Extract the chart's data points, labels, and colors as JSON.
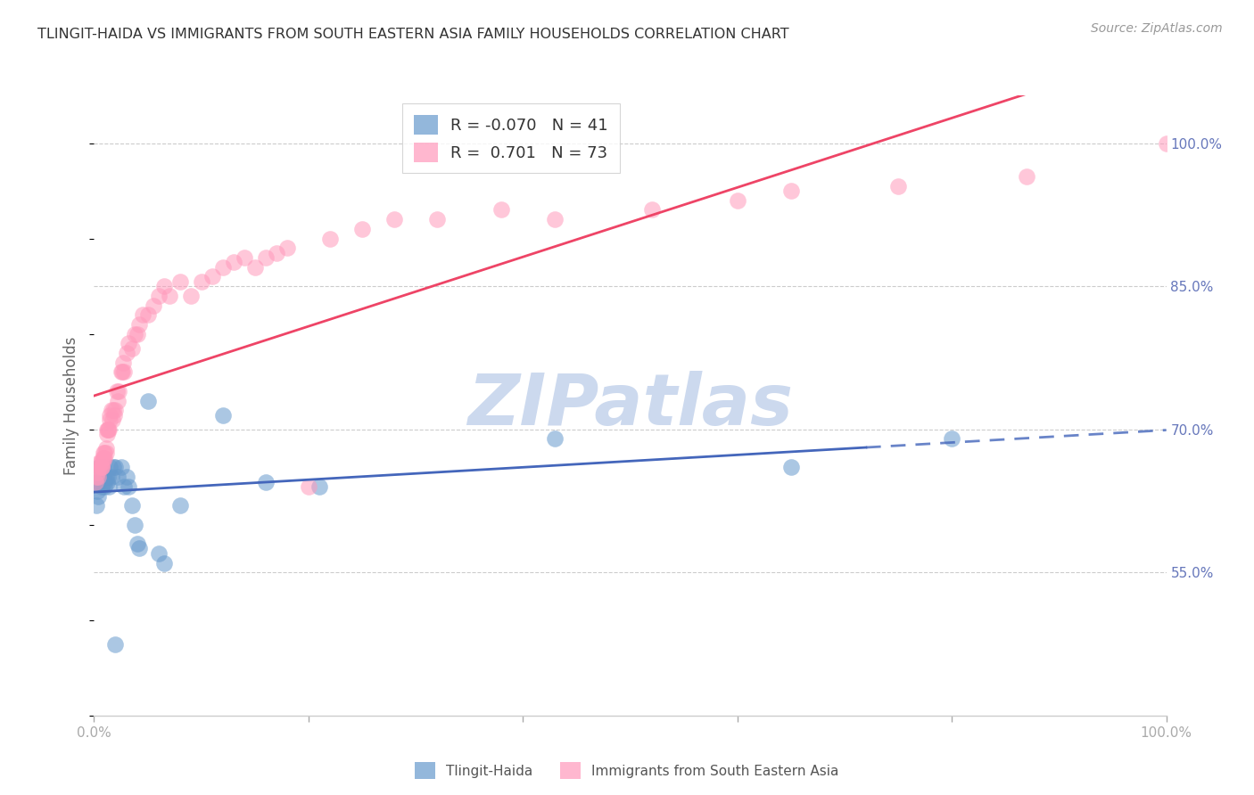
{
  "title": "TLINGIT-HAIDA VS IMMIGRANTS FROM SOUTH EASTERN ASIA FAMILY HOUSEHOLDS CORRELATION CHART",
  "source": "Source: ZipAtlas.com",
  "ylabel": "Family Households",
  "legend_r1": "-0.070",
  "legend_n1": "41",
  "legend_r2": "0.701",
  "legend_n2": "73",
  "blue_color": "#6699cc",
  "pink_color": "#ff99bb",
  "blue_line_color": "#4466bb",
  "pink_line_color": "#ee4466",
  "watermark_text": "ZIPatlas",
  "watermark_color": "#ccd9ee",
  "title_color": "#333333",
  "right_axis_color": "#6677bb",
  "xlim": [
    0.0,
    1.0
  ],
  "ylim": [
    0.4,
    1.05
  ],
  "yticks_right": [
    0.55,
    0.7,
    0.85,
    1.0
  ],
  "ytick_labels_right": [
    "55.0%",
    "70.0%",
    "85.0%",
    "100.0%"
  ],
  "blue_scatter_x": [
    0.001,
    0.002,
    0.003,
    0.004,
    0.005,
    0.005,
    0.006,
    0.007,
    0.007,
    0.008,
    0.009,
    0.01,
    0.01,
    0.011,
    0.012,
    0.013,
    0.014,
    0.015,
    0.016,
    0.018,
    0.02,
    0.022,
    0.025,
    0.028,
    0.03,
    0.032,
    0.035,
    0.038,
    0.04,
    0.042,
    0.05,
    0.06,
    0.065,
    0.08,
    0.12,
    0.16,
    0.21,
    0.43,
    0.65,
    0.8,
    0.02
  ],
  "blue_scatter_y": [
    0.645,
    0.62,
    0.635,
    0.63,
    0.66,
    0.645,
    0.66,
    0.65,
    0.64,
    0.66,
    0.65,
    0.645,
    0.64,
    0.65,
    0.645,
    0.65,
    0.64,
    0.66,
    0.65,
    0.66,
    0.66,
    0.65,
    0.66,
    0.64,
    0.65,
    0.64,
    0.62,
    0.6,
    0.58,
    0.575,
    0.73,
    0.57,
    0.56,
    0.62,
    0.715,
    0.645,
    0.64,
    0.69,
    0.66,
    0.69,
    0.475
  ],
  "pink_scatter_x": [
    0.001,
    0.002,
    0.003,
    0.004,
    0.005,
    0.005,
    0.006,
    0.006,
    0.007,
    0.007,
    0.008,
    0.008,
    0.009,
    0.009,
    0.01,
    0.01,
    0.011,
    0.011,
    0.012,
    0.012,
    0.013,
    0.013,
    0.014,
    0.015,
    0.015,
    0.016,
    0.017,
    0.018,
    0.019,
    0.02,
    0.021,
    0.022,
    0.023,
    0.025,
    0.026,
    0.027,
    0.028,
    0.03,
    0.032,
    0.035,
    0.038,
    0.04,
    0.042,
    0.045,
    0.05,
    0.055,
    0.06,
    0.065,
    0.07,
    0.08,
    0.09,
    0.1,
    0.11,
    0.12,
    0.13,
    0.14,
    0.15,
    0.16,
    0.17,
    0.18,
    0.2,
    0.22,
    0.25,
    0.28,
    0.32,
    0.38,
    0.43,
    0.52,
    0.6,
    0.65,
    0.75,
    0.87,
    1.0
  ],
  "pink_scatter_y": [
    0.645,
    0.65,
    0.655,
    0.65,
    0.66,
    0.665,
    0.66,
    0.665,
    0.66,
    0.66,
    0.67,
    0.665,
    0.67,
    0.675,
    0.675,
    0.67,
    0.68,
    0.675,
    0.7,
    0.695,
    0.7,
    0.7,
    0.7,
    0.71,
    0.715,
    0.72,
    0.71,
    0.72,
    0.715,
    0.72,
    0.74,
    0.73,
    0.74,
    0.76,
    0.76,
    0.77,
    0.76,
    0.78,
    0.79,
    0.785,
    0.8,
    0.8,
    0.81,
    0.82,
    0.82,
    0.83,
    0.84,
    0.85,
    0.84,
    0.855,
    0.84,
    0.855,
    0.86,
    0.87,
    0.875,
    0.88,
    0.87,
    0.88,
    0.885,
    0.89,
    0.64,
    0.9,
    0.91,
    0.92,
    0.92,
    0.93,
    0.92,
    0.93,
    0.94,
    0.95,
    0.955,
    0.965,
    1.0
  ]
}
